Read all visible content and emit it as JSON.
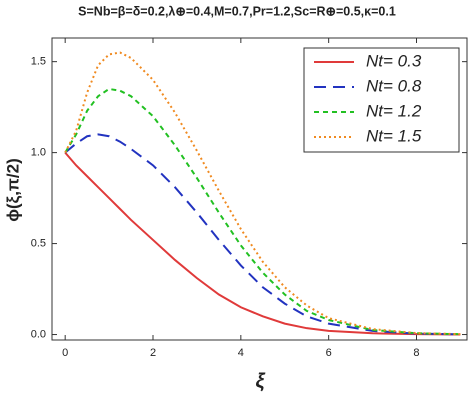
{
  "chart_data": {
    "type": "line",
    "title": "S=Nb=β=δ=0.2,λ⊕=0.4,M=0.7,Pr=1.2,Sc=R⊕=0.5,κ=0.1",
    "x_label": "ξ",
    "y_label": "ϕ(ξ,π/2)",
    "x": [
      0,
      0.25,
      0.5,
      0.75,
      1,
      1.25,
      1.5,
      2,
      2.5,
      3,
      3.5,
      4,
      4.5,
      5,
      5.5,
      6,
      7,
      8,
      9
    ],
    "series": [
      {
        "name": "Nt= 0.3",
        "color": "#e03a3a",
        "dash": "none",
        "values": [
          1,
          0.93,
          0.87,
          0.81,
          0.75,
          0.69,
          0.63,
          0.52,
          0.41,
          0.31,
          0.22,
          0.15,
          0.1,
          0.06,
          0.035,
          0.02,
          0.007,
          0.002,
          0
        ]
      },
      {
        "name": "Nt= 0.8",
        "color": "#2233c0",
        "dash": "12 7",
        "values": [
          1,
          1.05,
          1.09,
          1.1,
          1.09,
          1.06,
          1.02,
          0.93,
          0.81,
          0.67,
          0.52,
          0.38,
          0.26,
          0.17,
          0.1,
          0.06,
          0.02,
          0.005,
          0.001
        ]
      },
      {
        "name": "Nt= 1.2",
        "color": "#22c022",
        "dash": "5 4",
        "values": [
          1,
          1.1,
          1.23,
          1.31,
          1.35,
          1.34,
          1.31,
          1.2,
          1.04,
          0.86,
          0.67,
          0.49,
          0.34,
          0.22,
          0.13,
          0.08,
          0.025,
          0.007,
          0.002
        ]
      },
      {
        "name": "Nt= 1.5",
        "color": "#f08a20",
        "dash": "2 3",
        "values": [
          1,
          1.12,
          1.33,
          1.48,
          1.54,
          1.55,
          1.52,
          1.4,
          1.22,
          1.01,
          0.79,
          0.58,
          0.4,
          0.26,
          0.16,
          0.09,
          0.03,
          0.008,
          0.002
        ]
      }
    ],
    "xlim": [
      -0.3,
      9.15
    ],
    "ylim": [
      -0.03,
      1.63
    ],
    "xticks": [
      0,
      2,
      4,
      6,
      8
    ],
    "yticks": [
      {
        "value": 0,
        "label": "0.0"
      },
      {
        "value": 0.5,
        "label": "0.5"
      },
      {
        "value": 1,
        "label": "1.0"
      },
      {
        "value": 1.5,
        "label": "1.5"
      }
    ],
    "legend": "upper right"
  }
}
